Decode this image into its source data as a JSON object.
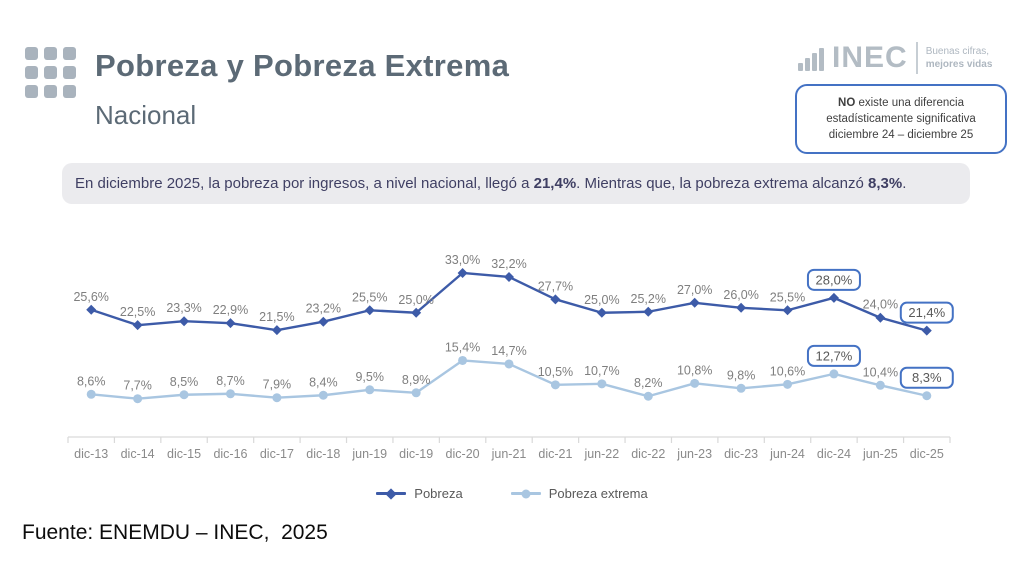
{
  "header": {
    "title": "Pobreza y Pobreza Extrema",
    "subtitle": "Nacional"
  },
  "logo": {
    "name": "INEC",
    "tagline_line1": "Buenas cifras,",
    "tagline_line2": "mejores vidas"
  },
  "callout": {
    "bold": "NO",
    "line1_rest": " existe una diferencia",
    "line2": "estadísticamente significativa",
    "line3": "diciembre 24 – diciembre 25",
    "border_color": "#4472c4"
  },
  "banner": {
    "part1": "En diciembre 2025, la pobreza por ingresos, a nivel nacional, llegó a ",
    "bold1": "21,4%",
    "part2": ". Mientras que, la pobreza extrema alcanzó ",
    "bold2": "8,3%",
    "part3": "."
  },
  "footer": {
    "source": "Fuente: ENEMDU – INEC,  2025"
  },
  "chart_data": {
    "type": "line",
    "title": "",
    "xlabel": "",
    "ylabel": "",
    "grid": "off",
    "legend_position": "bottom",
    "ylim": [
      0,
      40
    ],
    "axis_color": "#d9d9d9",
    "tick_label_color": "#8a8a8a",
    "data_label_color": "#7f7f7f",
    "label_box_border_color": "#4472c4",
    "label_box_text_color": "#595959",
    "categories": [
      "dic-13",
      "dic-14",
      "dic-15",
      "dic-16",
      "dic-17",
      "dic-18",
      "jun-19",
      "dic-19",
      "dic-20",
      "jun-21",
      "dic-21",
      "jun-22",
      "dic-22",
      "jun-23",
      "dic-23",
      "jun-24",
      "dic-24",
      "jun-25",
      "dic-25"
    ],
    "series": [
      {
        "name": "Pobreza",
        "color": "#3d5ba8",
        "marker": "diamond",
        "values": [
          25.6,
          22.5,
          23.3,
          22.9,
          21.5,
          23.2,
          25.5,
          25.0,
          33.0,
          32.2,
          27.7,
          25.0,
          25.2,
          27.0,
          26.0,
          25.5,
          28.0,
          24.0,
          21.4
        ],
        "labels": [
          "25,6%",
          "22,5%",
          "23,3%",
          "22,9%",
          "21,5%",
          "23,2%",
          "25,5%",
          "25,0%",
          "33,0%",
          "32,2%",
          "27,7%",
          "25,0%",
          "25,2%",
          "27,0%",
          "26,0%",
          "25,5%",
          "28,0%",
          "24,0%",
          "21,4%"
        ],
        "boxed_indices": [
          16,
          18
        ]
      },
      {
        "name": "Pobreza extrema",
        "color": "#a9c6e1",
        "marker": "circle",
        "values": [
          8.6,
          7.7,
          8.5,
          8.7,
          7.9,
          8.4,
          9.5,
          8.9,
          15.4,
          14.7,
          10.5,
          10.7,
          8.2,
          10.8,
          9.8,
          10.6,
          12.7,
          10.4,
          8.3
        ],
        "labels": [
          "8,6%",
          "7,7%",
          "8,5%",
          "8,7%",
          "7,9%",
          "8,4%",
          "9,5%",
          "8,9%",
          "15,4%",
          "14,7%",
          "10,5%",
          "10,7%",
          "8,2%",
          "10,8%",
          "9,8%",
          "10,6%",
          "12,7%",
          "10,4%",
          "8,3%"
        ],
        "boxed_indices": [
          16,
          18
        ]
      }
    ]
  }
}
